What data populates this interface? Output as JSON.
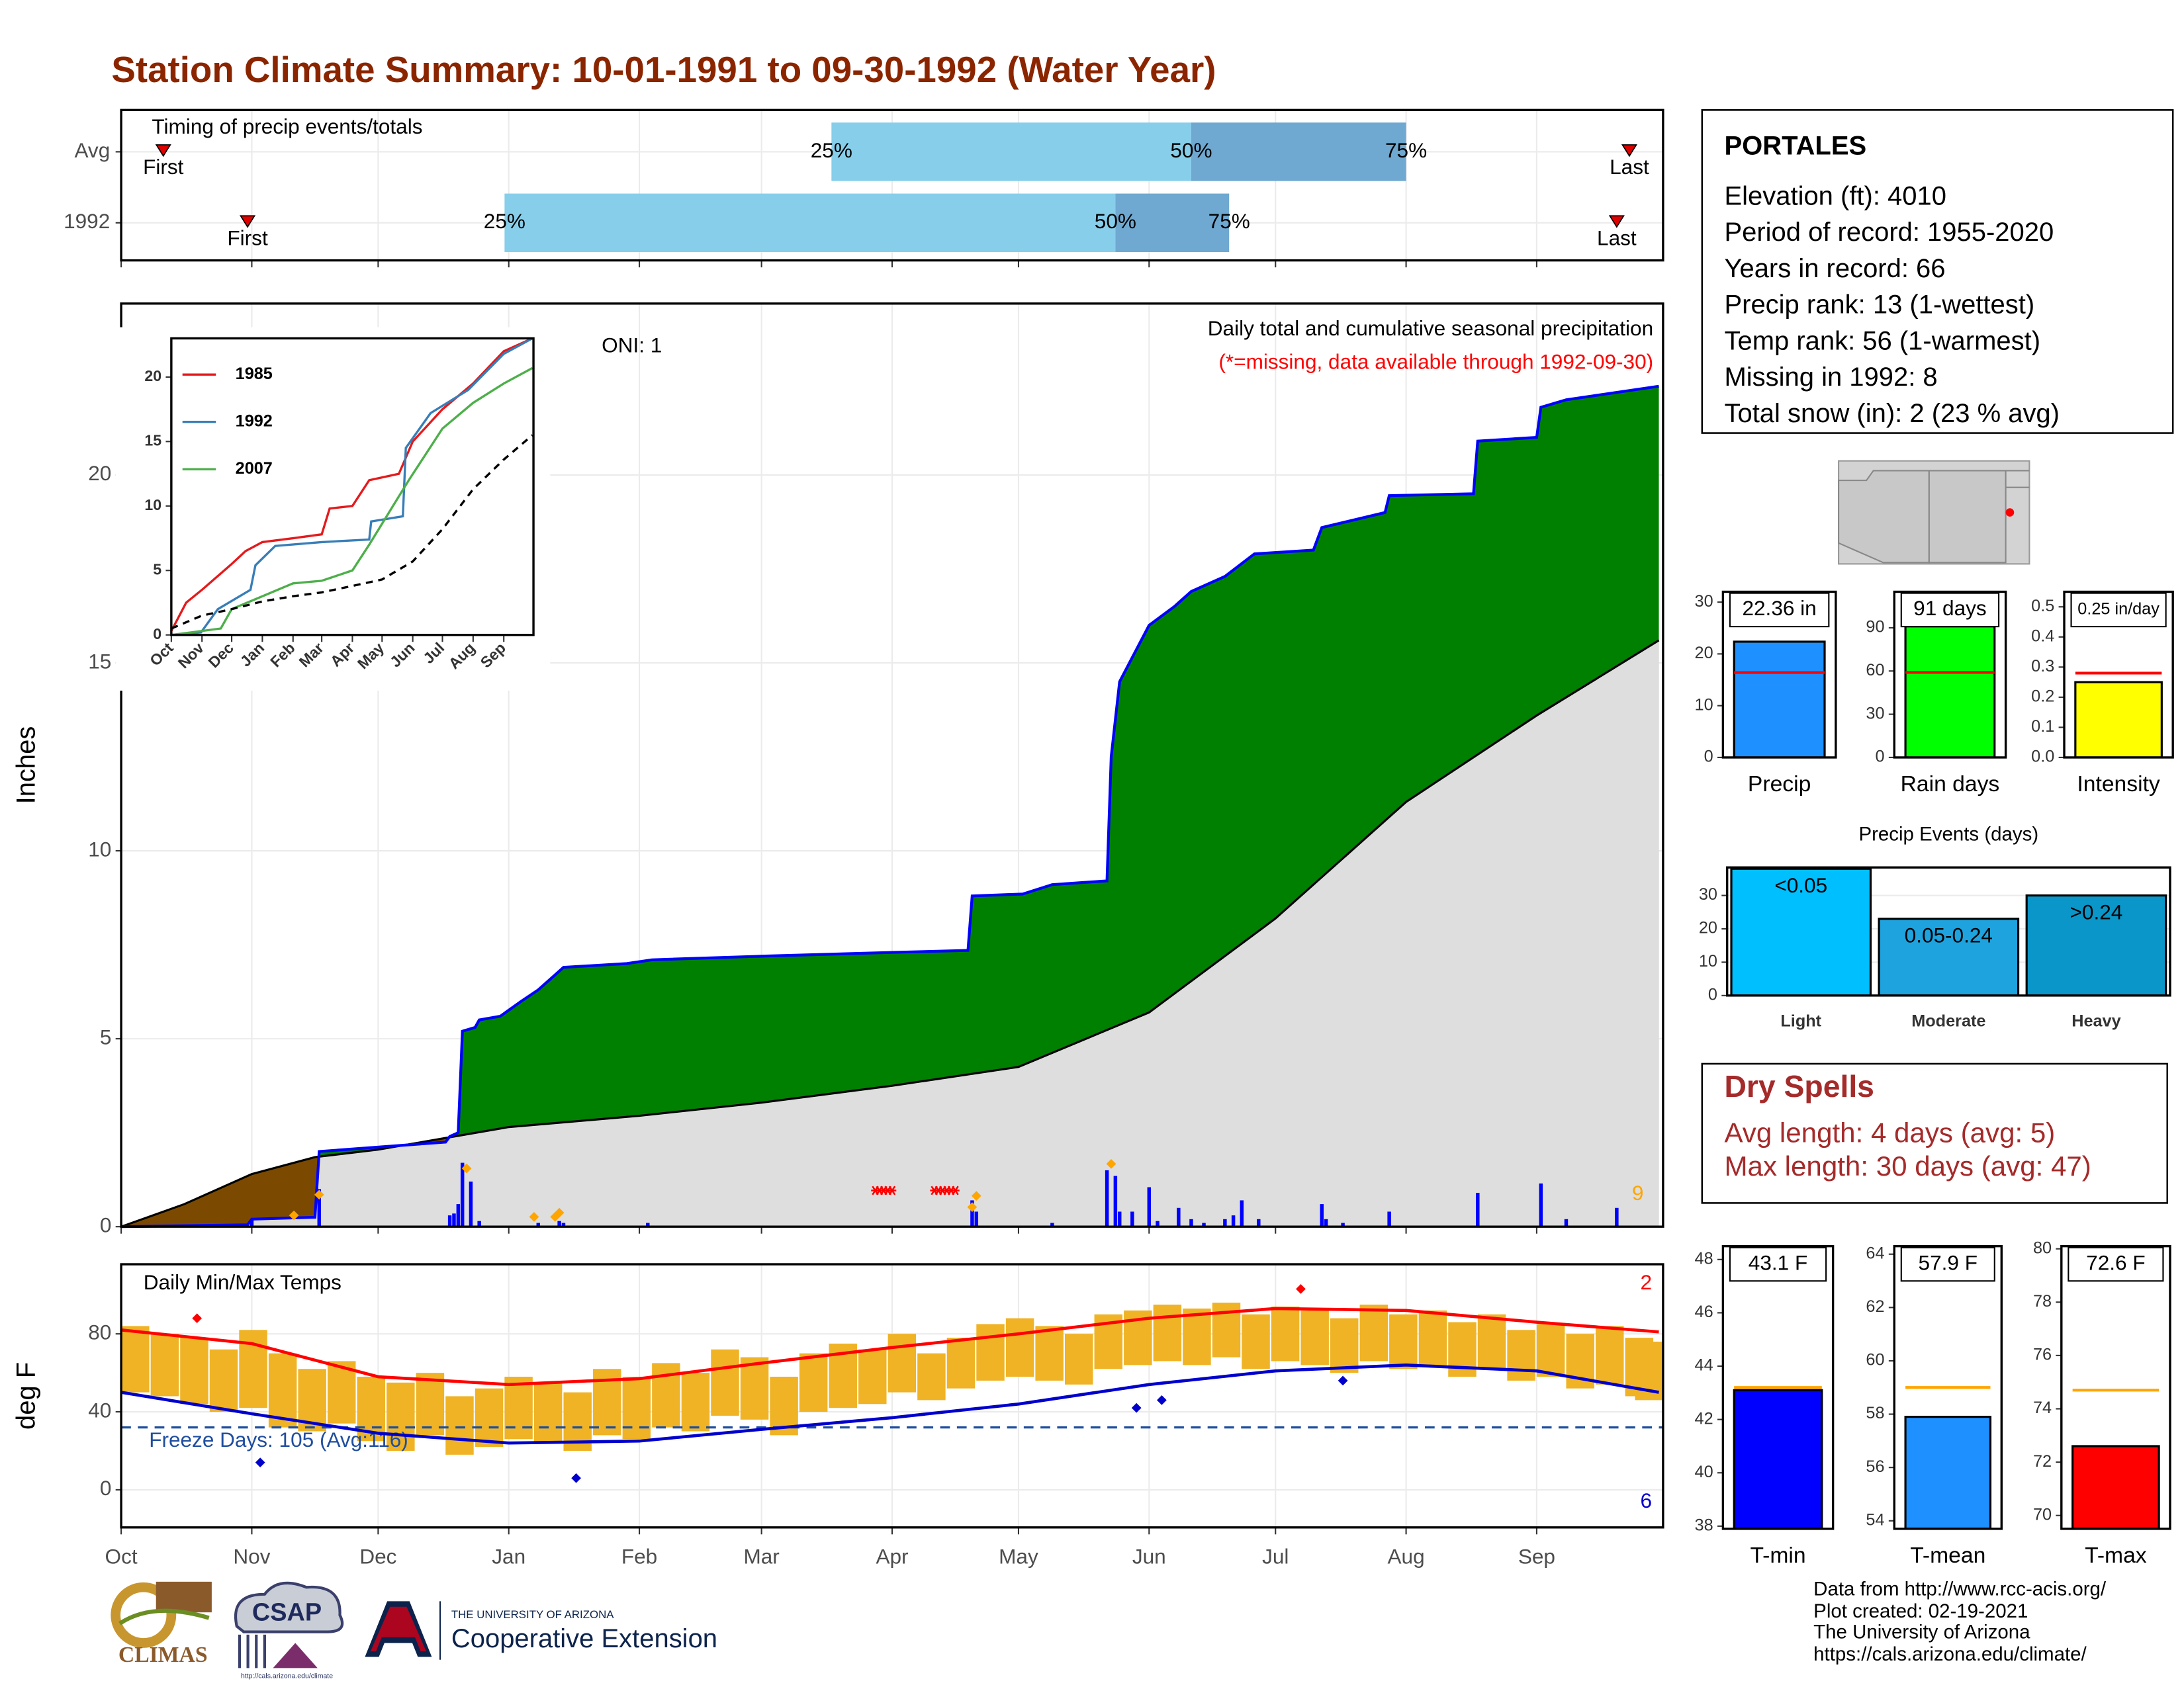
{
  "title": "Station Climate Summary: 10-01-1991 to 09-30-1992 (Water Year)",
  "station": {
    "name": "PORTALES",
    "lines": [
      "Elevation (ft): 4010",
      "Period of record: 1955-2020",
      "Years in record: 66",
      "Precip rank: 13 (1-wettest)",
      "Temp rank: 56 (1-warmest)",
      "Missing in 1992: 8",
      "Total snow (in): 2 (23 % avg)"
    ]
  },
  "dry_spells": {
    "title": "Dry Spells",
    "lines": [
      "Avg length: 4 days (avg: 5)",
      "Max length: 30 days (avg: 47)"
    ]
  },
  "footer": {
    "lines": [
      "Data from http://www.rcc-acis.org/",
      "Plot created: 02-19-2021",
      "The University of Arizona",
      "https://cals.arizona.edu/climate/"
    ]
  },
  "logos": {
    "climas": "CLIMAS",
    "csap": "CSAP",
    "csap_url": "http://cals.arizona.edu/climate",
    "university": "THE UNIVERSITY OF ARIZONA",
    "extension": "Cooperative Extension"
  },
  "chart_data": [
    {
      "type": "timing",
      "title": "Timing of precip events/totals",
      "categories": [
        "Avg",
        "1992"
      ],
      "first": [
        10,
        30
      ],
      "p25": [
        168.6,
        91
      ],
      "p50": [
        254,
        236
      ],
      "p75": [
        305,
        263
      ],
      "last": [
        358,
        355
      ],
      "first_label": "First",
      "last_label": "Last",
      "p25_label": "25%",
      "p50_label": "50%",
      "p75_label": "75%",
      "colors": [
        "#87ceeb",
        "#6fa8d0"
      ],
      "marker_color": "#e00000",
      "xlim": [
        0,
        366
      ],
      "xticks": [
        0,
        31,
        61,
        92,
        123,
        152,
        183,
        213,
        244,
        274,
        305,
        336
      ],
      "grid": true
    },
    {
      "type": "cumulative",
      "title": "Daily total and cumulative seasonal precipitation",
      "subtitle": "(*=missing, data available through 1992-09-30)",
      "annotation": "ONI: 1",
      "snow_count": 9,
      "ylabel": "Inches",
      "xlim": [
        0,
        366
      ],
      "xticks": [
        0,
        31,
        61,
        92,
        123,
        152,
        183,
        213,
        244,
        274,
        305,
        336
      ],
      "ylim": [
        0,
        24.56
      ],
      "yticks": [
        0,
        5,
        10,
        15,
        20
      ],
      "grid": true,
      "above_color": "#008000",
      "below_color": "#7b4a00",
      "base_color": "#dedede",
      "cumulative": {
        "color": "#0000ff",
        "x": [
          0,
          30,
          31,
          46,
          47,
          77,
          78,
          80,
          81,
          84,
          85,
          90,
          95,
          99,
          103,
          105,
          120,
          126,
          153,
          184,
          201,
          202,
          214,
          221,
          234,
          235,
          237,
          244,
          250,
          254,
          262,
          269,
          283,
          285,
          300,
          301,
          321,
          322,
          336,
          337,
          343,
          365
        ],
        "values": [
          0,
          0.05,
          0.2,
          0.25,
          2.0,
          2.25,
          2.4,
          2.5,
          5.2,
          5.3,
          5.5,
          5.6,
          6.0,
          6.3,
          6.7,
          6.9,
          7.0,
          7.1,
          7.2,
          7.3,
          7.35,
          8.8,
          8.85,
          9.1,
          9.2,
          12.5,
          14.5,
          16.0,
          16.5,
          16.9,
          17.3,
          17.9,
          18.0,
          18.6,
          19.0,
          19.45,
          19.5,
          20.9,
          21.0,
          21.8,
          22.0,
          22.36
        ]
      },
      "average": {
        "color": "#000000",
        "x": [
          0,
          15,
          31,
          46,
          61,
          92,
          123,
          152,
          183,
          213,
          244,
          274,
          305,
          336,
          365
        ],
        "values": [
          0,
          0.6,
          1.4,
          1.85,
          2.05,
          2.65,
          2.95,
          3.3,
          3.75,
          4.25,
          5.7,
          8.2,
          11.3,
          13.6,
          15.6
        ]
      },
      "daily": {
        "color": "#0000ff",
        "x": [
          31,
          47,
          78,
          79,
          80,
          81,
          83,
          85,
          99,
          104,
          105,
          125,
          202,
          203,
          221,
          234,
          236,
          237,
          240,
          244,
          246,
          251,
          254,
          257,
          262,
          264,
          266,
          270,
          285,
          286,
          290,
          301,
          322,
          337,
          343,
          355
        ],
        "values": [
          0.2,
          1.0,
          0.3,
          0.35,
          0.6,
          1.7,
          1.2,
          0.15,
          0.1,
          0.15,
          0.1,
          0.1,
          0.7,
          0.4,
          0.1,
          1.5,
          1.35,
          0.4,
          0.4,
          1.05,
          0.15,
          0.5,
          0.2,
          0.1,
          0.2,
          0.3,
          0.7,
          0.2,
          0.6,
          0.2,
          0.1,
          0.4,
          0.9,
          1.15,
          0.2,
          0.5
        ]
      },
      "snow": {
        "color": "#ffa500",
        "x": [
          41,
          47,
          82,
          98,
          103,
          104,
          202,
          203,
          235
        ],
        "values": [
          0.3,
          0.85,
          1.55,
          0.26,
          0.26,
          0.37,
          0.52,
          0.82,
          1.67
        ]
      },
      "missing": {
        "color": "#ff0000",
        "x": [
          179,
          180,
          181,
          182,
          183,
          193,
          194,
          195,
          196,
          197,
          198
        ]
      }
    },
    {
      "type": "line",
      "xlim": [
        0,
        366
      ],
      "xticks": [
        {
          "value": 0,
          "label": "Oct"
        },
        {
          "value": 31,
          "label": "Nov"
        },
        {
          "value": 61,
          "label": "Dec"
        },
        {
          "value": 92,
          "label": "Jan"
        },
        {
          "value": 123,
          "label": "Feb"
        },
        {
          "value": 152,
          "label": "Mar"
        },
        {
          "value": 183,
          "label": "Apr"
        },
        {
          "value": 213,
          "label": "May"
        },
        {
          "value": 244,
          "label": "Jun"
        },
        {
          "value": 274,
          "label": "Jul"
        },
        {
          "value": 305,
          "label": "Aug"
        },
        {
          "value": 336,
          "label": "Sep"
        }
      ],
      "ylim": [
        0,
        23
      ],
      "yticks": [
        0,
        5,
        10,
        15,
        20
      ],
      "series": [
        {
          "name": "1985",
          "color": "#e41a1c",
          "x": [
            0,
            15,
            31,
            61,
            75,
            92,
            123,
            152,
            160,
            183,
            200,
            230,
            244,
            274,
            305,
            336,
            365
          ],
          "values": [
            0.3,
            2.5,
            3.5,
            5.5,
            6.5,
            7.2,
            7.5,
            7.8,
            9.8,
            10,
            12,
            12.5,
            15,
            17.5,
            19.5,
            22,
            23
          ]
        },
        {
          "name": "1992",
          "color": "#377eb8",
          "x": [
            0,
            30,
            47,
            80,
            85,
            105,
            152,
            200,
            202,
            234,
            237,
            262,
            300,
            336,
            365
          ],
          "values": [
            0,
            0.2,
            2,
            3.5,
            5.4,
            6.9,
            7.2,
            7.4,
            8.8,
            9.2,
            14.5,
            17.2,
            19,
            21.8,
            23
          ]
        },
        {
          "name": "2007",
          "color": "#4daf4a",
          "x": [
            0,
            50,
            61,
            92,
            123,
            152,
            183,
            200,
            240,
            274,
            305,
            336,
            365
          ],
          "values": [
            0,
            0.5,
            2,
            3,
            4,
            4.2,
            5,
            7,
            12,
            16,
            18,
            19.5,
            20.7
          ]
        },
        {
          "color": "#000000",
          "dash": true,
          "x": [
            0,
            31,
            61,
            92,
            123,
            152,
            183,
            213,
            244,
            274,
            305,
            336,
            365
          ],
          "values": [
            0.5,
            1.5,
            2,
            2.6,
            3,
            3.3,
            3.8,
            4.3,
            5.7,
            8.2,
            11.3,
            13.6,
            15.5
          ]
        }
      ]
    },
    {
      "type": "temperature",
      "title": "Daily Min/Max Temps",
      "ylabel": "deg F",
      "xlim": [
        0,
        366
      ],
      "xticks": [
        {
          "value": 0,
          "label": "Oct"
        },
        {
          "value": 31,
          "label": "Nov"
        },
        {
          "value": 61,
          "label": "Dec"
        },
        {
          "value": 92,
          "label": "Jan"
        },
        {
          "value": 123,
          "label": "Feb"
        },
        {
          "value": 152,
          "label": "Mar"
        },
        {
          "value": 183,
          "label": "Apr"
        },
        {
          "value": 213,
          "label": "May"
        },
        {
          "value": 244,
          "label": "Jun"
        },
        {
          "value": 274,
          "label": "Jul"
        },
        {
          "value": 305,
          "label": "Aug"
        },
        {
          "value": 336,
          "label": "Sep"
        }
      ],
      "ylim": [
        -19.3,
        115.7
      ],
      "yticks": [
        0,
        40,
        80
      ],
      "grid": true,
      "freeze_line": 32,
      "freeze_label": "Freeze Days: 105 (Avg:116)",
      "record_high_count": 2,
      "record_low_count": 6,
      "daily": {
        "color": "#efb325",
        "x": [
          0,
          7,
          14,
          21,
          28,
          35,
          42,
          49,
          56,
          63,
          70,
          77,
          84,
          91,
          98,
          105,
          112,
          119,
          126,
          133,
          140,
          147,
          154,
          161,
          168,
          175,
          182,
          189,
          196,
          203,
          210,
          217,
          224,
          231,
          238,
          245,
          252,
          259,
          266,
          273,
          280,
          287,
          294,
          301,
          308,
          315,
          322,
          329,
          336,
          343,
          350,
          357,
          364
        ],
        "tmax": [
          84,
          80,
          78,
          72,
          82,
          70,
          62,
          66,
          58,
          55,
          60,
          48,
          52,
          58,
          55,
          50,
          62,
          58,
          65,
          60,
          72,
          68,
          58,
          70,
          75,
          72,
          80,
          70,
          78,
          85,
          88,
          84,
          80,
          90,
          92,
          95,
          93,
          96,
          90,
          94,
          92,
          88,
          95,
          90,
          92,
          86,
          90,
          82,
          85,
          80,
          84,
          78,
          76
        ],
        "tmin": [
          50,
          48,
          44,
          40,
          42,
          32,
          30,
          34,
          25,
          20,
          28,
          18,
          22,
          26,
          24,
          20,
          28,
          26,
          32,
          30,
          38,
          36,
          28,
          40,
          42,
          44,
          50,
          46,
          52,
          56,
          58,
          56,
          54,
          62,
          64,
          66,
          64,
          68,
          62,
          66,
          64,
          60,
          66,
          62,
          64,
          58,
          62,
          56,
          58,
          52,
          54,
          48,
          46
        ]
      },
      "avg_max": {
        "color": "#ff0000",
        "x": [
          0,
          31,
          61,
          92,
          123,
          152,
          183,
          213,
          244,
          274,
          305,
          336,
          365
        ],
        "values": [
          82,
          75,
          58,
          54,
          57,
          65,
          73,
          80,
          88,
          93,
          92,
          86,
          81
        ]
      },
      "avg_min": {
        "color": "#0000cd",
        "x": [
          0,
          31,
          61,
          92,
          123,
          152,
          183,
          213,
          244,
          274,
          305,
          336,
          365
        ],
        "values": [
          50,
          39,
          29,
          24,
          25,
          31,
          37,
          44,
          54,
          61,
          64,
          61,
          50
        ]
      },
      "record_highs": {
        "color": "#ff0000",
        "x": [
          18,
          280
        ],
        "values": [
          88,
          103
        ]
      },
      "record_lows": {
        "color": "#0000cd",
        "x": [
          33,
          108,
          241,
          247,
          290
        ],
        "values": [
          14,
          6,
          42,
          46,
          56
        ]
      }
    },
    {
      "type": "summary-bar",
      "categories": [
        "Precip"
      ],
      "values": [
        22.36
      ],
      "value_labels": [
        "22.36 in"
      ],
      "average": 16.4,
      "color": "#1e90ff",
      "avg_color": "#ff0000",
      "ylim": [
        0,
        32
      ],
      "yticks": [
        0,
        10,
        20,
        30
      ]
    },
    {
      "type": "summary-bar",
      "categories": [
        "Rain days"
      ],
      "values": [
        91
      ],
      "value_labels": [
        "91 days"
      ],
      "average": 59,
      "color": "#00ff00",
      "avg_color": "#ff0000",
      "ylim": [
        0,
        115
      ],
      "yticks": [
        0,
        30,
        60,
        90
      ]
    },
    {
      "type": "summary-bar",
      "categories": [
        "Intensity"
      ],
      "values": [
        0.25
      ],
      "value_labels": [
        "0.25 in/day"
      ],
      "average": 0.28,
      "color": "#ffff00",
      "avg_color": "#ff0000",
      "ylim": [
        0,
        0.55
      ],
      "yticks": [
        {
          "value": 0,
          "label": "0.0"
        },
        0.1,
        0.2,
        0.3,
        0.4,
        0.5
      ]
    },
    {
      "type": "bar",
      "title": "Precip Events (days)",
      "categories": [
        "Light",
        "Moderate",
        "Heavy"
      ],
      "bar_labels": [
        "<0.05",
        "0.05-0.24",
        ">0.24"
      ],
      "values": [
        38,
        23,
        30
      ],
      "colors": [
        "#00bfff",
        "#1ea3de",
        "#0a96c8"
      ],
      "ylim": [
        0,
        38.4
      ],
      "yticks": [
        0,
        10,
        20,
        30
      ],
      "grid": true
    },
    {
      "type": "summary-bar",
      "categories": [
        "T-min"
      ],
      "values": [
        43.1
      ],
      "value_labels": [
        "43.1 F"
      ],
      "average": 43.2,
      "color": "#0000ff",
      "avg_color": "#ffa500",
      "ylim": [
        37.9,
        48.5
      ],
      "yticks": [
        38,
        40,
        42,
        44,
        46,
        48
      ]
    },
    {
      "type": "summary-bar",
      "categories": [
        "T-mean"
      ],
      "values": [
        57.9
      ],
      "value_labels": [
        "57.9 F"
      ],
      "average": 59.0,
      "color": "#1e90ff",
      "avg_color": "#ffa500",
      "ylim": [
        53.7,
        64.3
      ],
      "yticks": [
        54,
        56,
        58,
        60,
        62,
        64
      ]
    },
    {
      "type": "summary-bar",
      "categories": [
        "T-max"
      ],
      "values": [
        72.6
      ],
      "value_labels": [
        "72.6 F"
      ],
      "average": 74.7,
      "color": "#ff0000",
      "avg_color": "#ffa500",
      "ylim": [
        69.5,
        80.1
      ],
      "yticks": [
        70,
        72,
        74,
        76,
        78,
        80
      ]
    }
  ]
}
